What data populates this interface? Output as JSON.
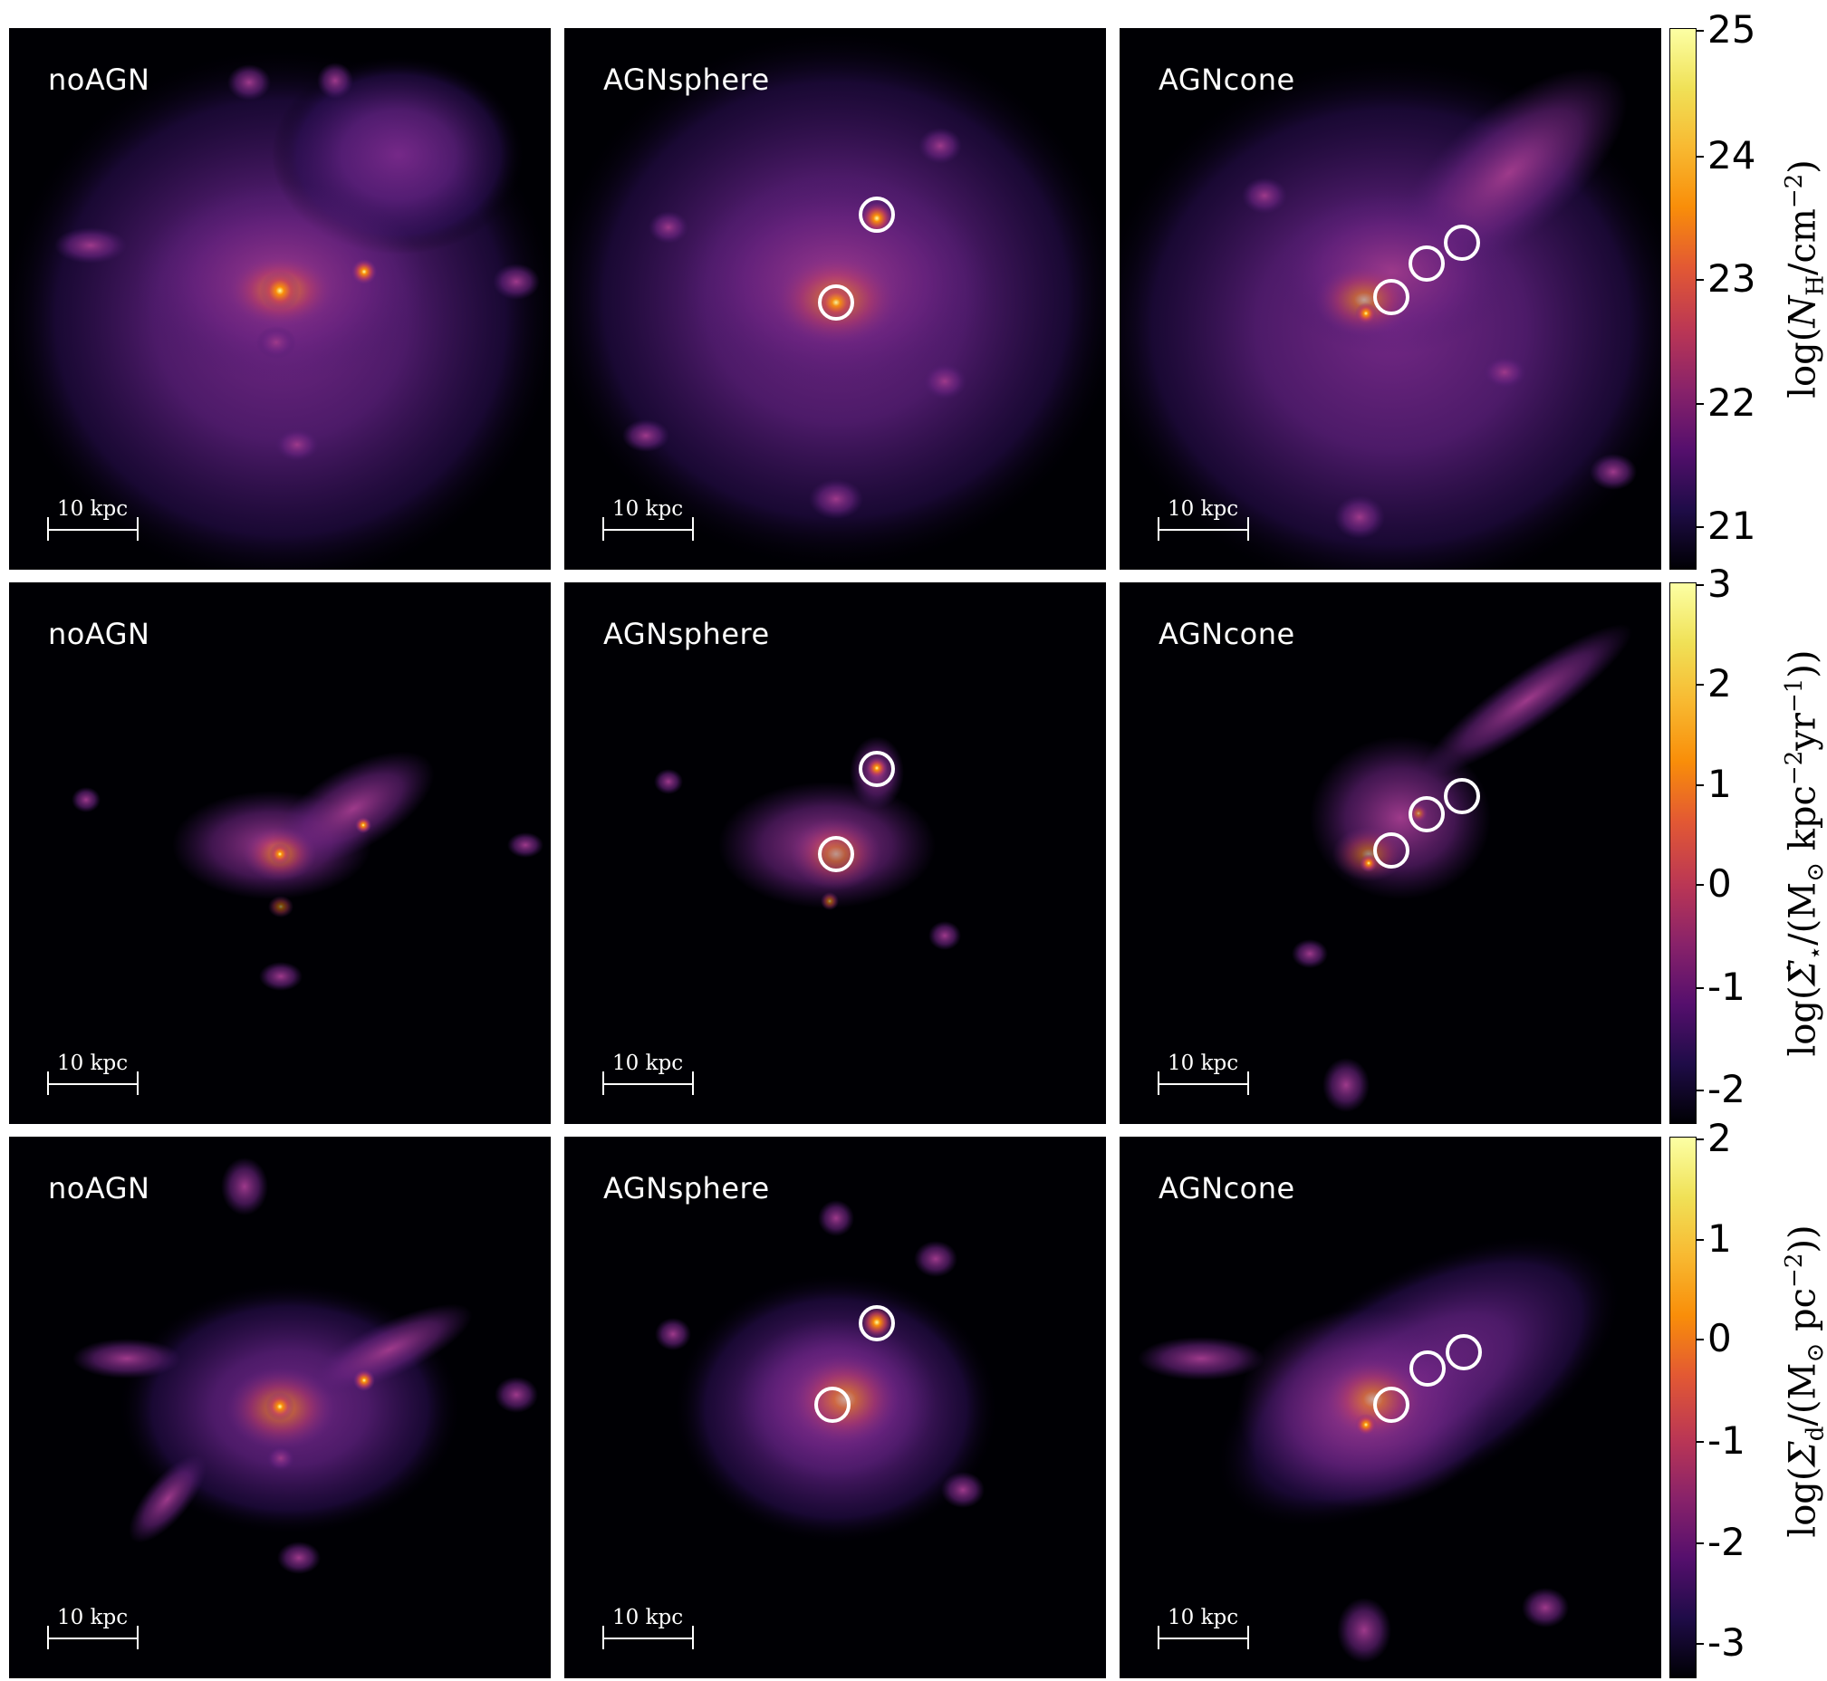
{
  "rows": [
    {
      "quantity": "gas-column-density",
      "panels": [
        "noAGN",
        "AGNsphere",
        "AGNcone"
      ],
      "colorbar": {
        "ticks": [
          "25",
          "24",
          "23",
          "22",
          "21"
        ],
        "label_prefix": "log(",
        "label_symbol": "N",
        "label_sub": "H",
        "label_unit": "/cm",
        "label_sup": "−2",
        "label_suffix": ")"
      }
    },
    {
      "quantity": "star-formation-rate-density",
      "panels": [
        "noAGN",
        "AGNsphere",
        "AGNcone"
      ],
      "colorbar": {
        "ticks": [
          "3",
          "2",
          "1",
          "0",
          "-1",
          "-2"
        ],
        "label_prefix": "log(",
        "label_symbol": "Σ̇",
        "label_sub": "⋆",
        "label_unit": "/(M",
        "label_sub2": "⊙",
        "label_unit2": " kpc",
        "label_sup": "−2",
        "label_unit3": "yr",
        "label_sup2": "−1",
        "label_suffix": "))"
      }
    },
    {
      "quantity": "dust-surface-density",
      "panels": [
        "noAGN",
        "AGNsphere",
        "AGNcone"
      ],
      "colorbar": {
        "ticks": [
          "2",
          "1",
          "0",
          "-1",
          "-2",
          "-3"
        ],
        "label_prefix": "log(",
        "label_symbol": "Σ",
        "label_sub": "d",
        "label_unit": "/(M",
        "label_sub2": "⊙",
        "label_unit2": " pc",
        "label_sup": "−2",
        "label_suffix": "))"
      }
    }
  ],
  "scalebar_label": "10 kpc",
  "colormap": "inferno",
  "colors": {
    "ring": "#ffffff",
    "background": "#000004"
  }
}
